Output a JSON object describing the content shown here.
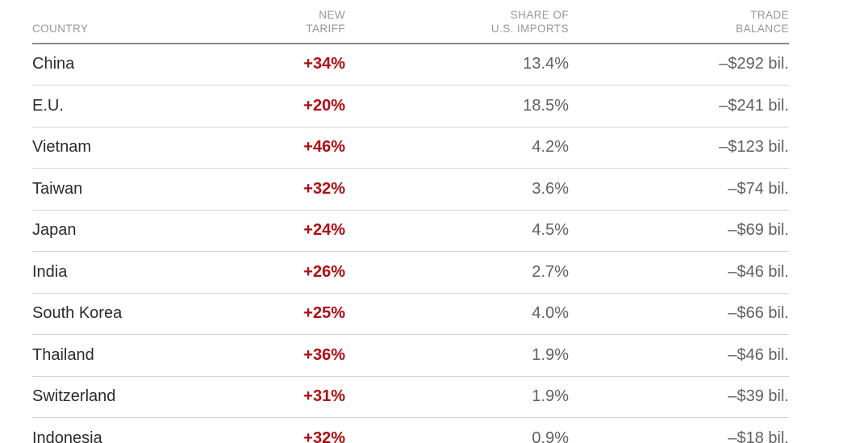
{
  "header": {
    "country": "COUNTRY",
    "new_tariff_line1": "NEW",
    "new_tariff_line2": "TARIFF",
    "share_line1": "SHARE OF",
    "share_line2": "U.S. IMPORTS",
    "trade_line1": "TRADE",
    "trade_line2": "BALANCE"
  },
  "table": {
    "rows": [
      {
        "country": "China",
        "new_tariff": "+34%",
        "share_of_us_imports": "13.4%",
        "trade_balance": "–$292 bil."
      },
      {
        "country": "E.U.",
        "new_tariff": "+20%",
        "share_of_us_imports": "18.5%",
        "trade_balance": "–$241 bil."
      },
      {
        "country": "Vietnam",
        "new_tariff": "+46%",
        "share_of_us_imports": "4.2%",
        "trade_balance": "–$123 bil."
      },
      {
        "country": "Taiwan",
        "new_tariff": "+32%",
        "share_of_us_imports": "3.6%",
        "trade_balance": "–$74 bil."
      },
      {
        "country": "Japan",
        "new_tariff": "+24%",
        "share_of_us_imports": "4.5%",
        "trade_balance": "–$69 bil."
      },
      {
        "country": "India",
        "new_tariff": "+26%",
        "share_of_us_imports": "2.7%",
        "trade_balance": "–$46 bil."
      },
      {
        "country": "South Korea",
        "new_tariff": "+25%",
        "share_of_us_imports": "4.0%",
        "trade_balance": "–$66 bil."
      },
      {
        "country": "Thailand",
        "new_tariff": "+36%",
        "share_of_us_imports": "1.9%",
        "trade_balance": "–$46 bil."
      },
      {
        "country": "Switzerland",
        "new_tariff": "+31%",
        "share_of_us_imports": "1.9%",
        "trade_balance": "–$39 bil."
      },
      {
        "country": "Indonesia",
        "new_tariff": "+32%",
        "share_of_us_imports": "0.9%",
        "trade_balance": "–$18 bil."
      }
    ]
  },
  "chart_data": {
    "type": "table",
    "title": "",
    "columns": [
      "Country",
      "New tariff",
      "Share of U.S. imports",
      "Trade balance"
    ],
    "rows": [
      [
        "China",
        "+34%",
        "13.4%",
        "-$292 bil."
      ],
      [
        "E.U.",
        "+20%",
        "18.5%",
        "-$241 bil."
      ],
      [
        "Vietnam",
        "+46%",
        "4.2%",
        "-$123 bil."
      ],
      [
        "Taiwan",
        "+32%",
        "3.6%",
        "-$74 bil."
      ],
      [
        "Japan",
        "+24%",
        "4.5%",
        "-$69 bil."
      ],
      [
        "India",
        "+26%",
        "2.7%",
        "-$46 bil."
      ],
      [
        "South Korea",
        "+25%",
        "4.0%",
        "-$66 bil."
      ],
      [
        "Thailand",
        "+36%",
        "1.9%",
        "-$46 bil."
      ],
      [
        "Switzerland",
        "+31%",
        "1.9%",
        "-$39 bil."
      ],
      [
        "Indonesia",
        "+32%",
        "0.9%",
        "-$18 bil."
      ]
    ],
    "numeric": {
      "new_tariff_pct": [
        34,
        20,
        46,
        32,
        24,
        26,
        25,
        36,
        31,
        32
      ],
      "share_of_us_imports_pct": [
        13.4,
        18.5,
        4.2,
        3.6,
        4.5,
        2.7,
        4.0,
        1.9,
        1.9,
        0.9
      ],
      "trade_balance_bil_usd": [
        -292,
        -241,
        -123,
        -74,
        -69,
        -46,
        -66,
        -46,
        -39,
        -18
      ]
    }
  },
  "colors": {
    "tariff_red": "#b40a0f",
    "country_text": "#2b2b2b",
    "value_gray": "#606060",
    "header_gray": "#979797",
    "header_rule": "#8a8a8a",
    "row_divider": "#d4d4d4"
  }
}
